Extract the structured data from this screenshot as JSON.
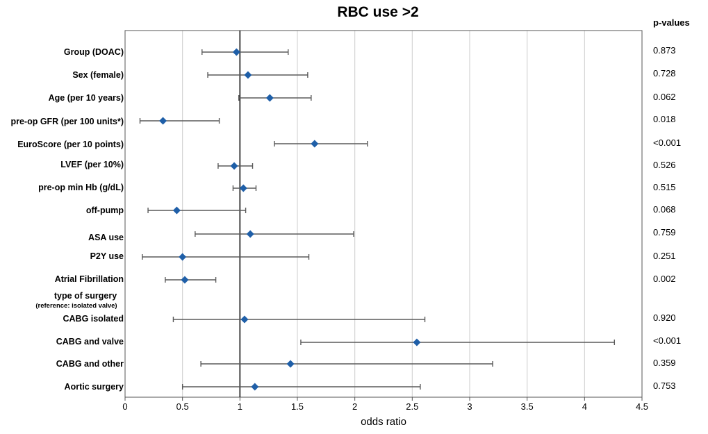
{
  "chart_data": {
    "type": "forest",
    "title": "RBC use >2",
    "xlabel": "odds ratio",
    "xlim": [
      0,
      4.5
    ],
    "xticks": [
      0,
      0.5,
      1,
      1.5,
      2,
      2.5,
      3,
      3.5,
      4,
      4.5
    ],
    "xtick_labels": [
      "0",
      "0.5",
      "1",
      "1.5",
      "2",
      "2.5",
      "3",
      "3.5",
      "4",
      "4.5"
    ],
    "reference_line": 1,
    "grid": "vertical",
    "pvalues_header": "p-values",
    "marker_color": "#1f5fa8",
    "rows": [
      {
        "label": "Group (DOAC)",
        "or": 0.97,
        "lo": 0.67,
        "hi": 1.42,
        "p": "0.873"
      },
      {
        "label": "Sex (female)",
        "or": 1.07,
        "lo": 0.72,
        "hi": 1.59,
        "p": "0.728"
      },
      {
        "label": "Age (per 10 years)",
        "or": 1.26,
        "lo": 0.99,
        "hi": 1.62,
        "p": "0.062"
      },
      {
        "label": "pre-op GFR (per 100 units*)",
        "or": 0.33,
        "lo": 0.13,
        "hi": 0.82,
        "p": "0.018"
      },
      {
        "label": "EuroScore (per 10 points)",
        "or": 1.65,
        "lo": 1.3,
        "hi": 2.11,
        "p": "<0.001"
      },
      {
        "label": "LVEF (per 10%)",
        "or": 0.95,
        "lo": 0.81,
        "hi": 1.11,
        "p": "0.526"
      },
      {
        "label": "pre-op min Hb (g/dL)",
        "or": 1.03,
        "lo": 0.94,
        "hi": 1.14,
        "p": "0.515"
      },
      {
        "label": "off-pump",
        "or": 0.45,
        "lo": 0.2,
        "hi": 1.05,
        "p": "0.068"
      },
      {
        "label": "ASA use",
        "or": 1.09,
        "lo": 0.61,
        "hi": 1.99,
        "p": "0.759"
      },
      {
        "label": "P2Y use",
        "or": 0.5,
        "lo": 0.15,
        "hi": 1.6,
        "p": "0.251"
      },
      {
        "label": "Atrial Fibrillation",
        "or": 0.52,
        "lo": 0.35,
        "hi": 0.79,
        "p": "0.002"
      },
      {
        "label": "CABG isolated",
        "or": 1.04,
        "lo": 0.42,
        "hi": 2.61,
        "p": "0.920"
      },
      {
        "label": "CABG and valve",
        "or": 2.54,
        "lo": 1.53,
        "hi": 4.26,
        "p": "<0.001"
      },
      {
        "label": "CABG and other",
        "or": 1.44,
        "lo": 0.66,
        "hi": 3.2,
        "p": "0.359"
      },
      {
        "label": "Aortic surgery",
        "or": 1.13,
        "lo": 0.5,
        "hi": 2.57,
        "p": "0.753"
      }
    ],
    "group_header": {
      "label": "type of surgery",
      "sublabel": "(reference: isolated valve)"
    }
  }
}
